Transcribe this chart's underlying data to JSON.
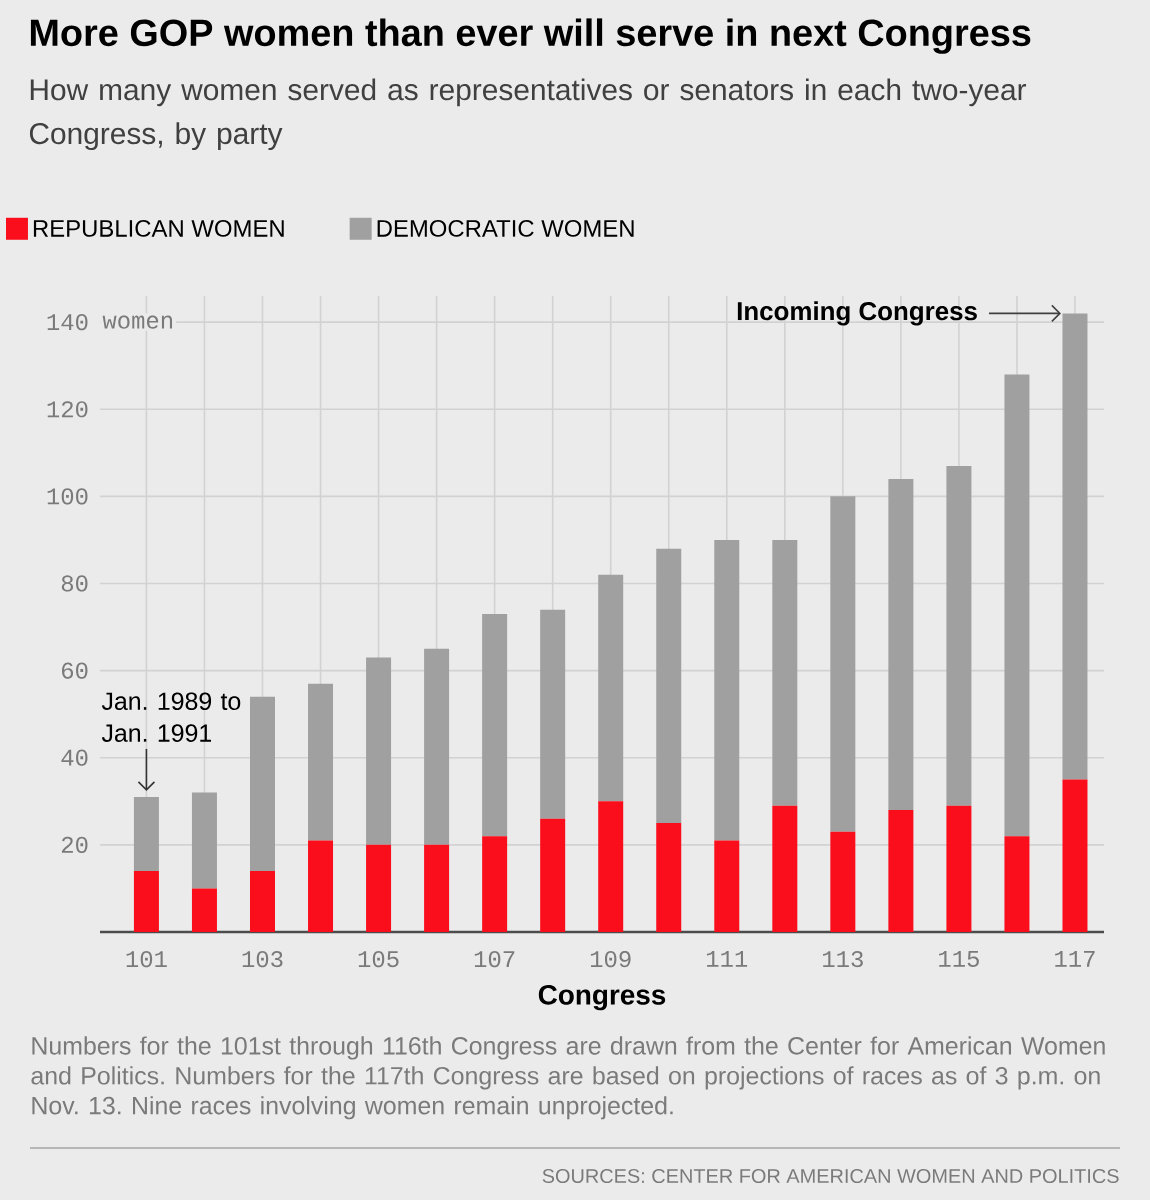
{
  "chart_data": {
    "type": "bar",
    "stacked": true,
    "title": "More GOP women than ever will serve in next Congress",
    "subtitle": "How many women served as representatives or senators in each two-year Congress, by party",
    "xlabel": "Congress",
    "ylabel": "women",
    "categories": [
      "101",
      null,
      "103",
      null,
      "105",
      null,
      "107",
      null,
      "109",
      null,
      "111",
      null,
      "113",
      null,
      "115",
      null,
      "117"
    ],
    "series": [
      {
        "name": "REPUBLICAN WOMEN",
        "color": "#fb0e1c",
        "values": [
          14,
          10,
          14,
          21,
          20,
          20,
          22,
          26,
          30,
          25,
          21,
          29,
          23,
          28,
          29,
          22,
          35
        ]
      },
      {
        "name": "DEMOCRATIC WOMEN",
        "color": "#a0a0a0",
        "values": [
          17,
          22,
          40,
          36,
          43,
          45,
          51,
          48,
          52,
          63,
          69,
          61,
          77,
          76,
          78,
          106,
          107
        ]
      }
    ],
    "ylim": [
      0,
      146
    ],
    "yticks": [
      20,
      40,
      60,
      80,
      100,
      120,
      140
    ],
    "grid": true,
    "legend": "top left",
    "annotations": [
      {
        "text": "Jan. 1989 to Jan. 1991",
        "x": "101",
        "y": 31
      },
      {
        "text": "Incoming Congress",
        "x": "117",
        "y": 142
      },
      "Numbers for the 101st through 116th Congress are drawn from the Center for American Women and Politics. Numbers for the 117th Congress are based on projections of races as of 3 p.m. on Nov. 13. Nine races involving women remain unprojected.",
      "SOURCES: CENTER FOR AMERICAN WOMEN AND POLITICS"
    ]
  }
}
